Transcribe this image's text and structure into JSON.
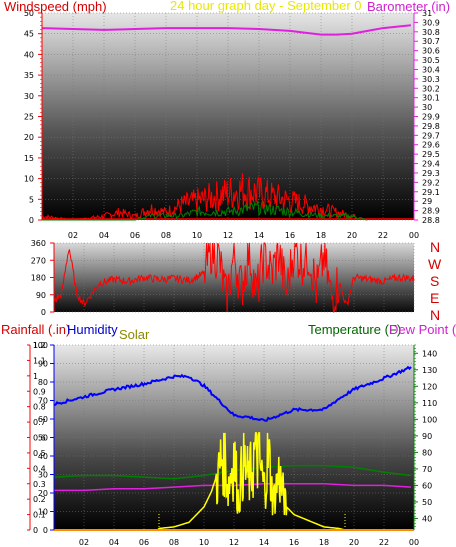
{
  "titles": {
    "windspeed": "Windspeed (mph)",
    "date": "24 hour graph day - September 0",
    "barometer": "Barometer (in)",
    "rainfall": "Rainfall (.in)",
    "humidity": "Humidity",
    "solar": "Solar",
    "temperature": "Temperature (F)",
    "dewpoint": "Dew Point ("
  },
  "direction_labels": [
    "N",
    "W",
    "S",
    "E",
    "N"
  ],
  "colors": {
    "wind": "#ff0000",
    "gust_fill": "#ff0000",
    "avg_wind": "#008000",
    "barometer": "#e020e0",
    "humidity": "#0000ff",
    "solar": "#ffff00",
    "temperature": "#008000",
    "dewpoint": "#e020e0",
    "rain": "#ff8c00",
    "axis_left": "#ff0000",
    "axis_right_top": "#e020e0",
    "axis_right_bottom": "#008000",
    "axis_humidity": "#0000ff"
  },
  "chart_data": [
    {
      "type": "line",
      "name": "wind_barometer",
      "x_ticks": [
        "02",
        "04",
        "06",
        "08",
        "10",
        "12",
        "14",
        "16",
        "18",
        "20",
        "22",
        "00"
      ],
      "left_axis": {
        "label": "Windspeed (mph)",
        "ticks": [
          0,
          5,
          10,
          15,
          20,
          25,
          30,
          35,
          40,
          45,
          50
        ],
        "ylim": [
          0,
          50
        ]
      },
      "right_axis": {
        "label": "Barometer (in)",
        "ticks": [
          28.8,
          28.9,
          29,
          29.1,
          29.2,
          29.3,
          29.4,
          29.5,
          29.6,
          29.7,
          29.8,
          29.9,
          30,
          30.1,
          30.2,
          30.3,
          30.4,
          30.5,
          30.6,
          30.7,
          30.8,
          30.9,
          31
        ],
        "ylim": [
          28.8,
          31.0
        ]
      },
      "series": [
        {
          "values": [
            [
              0,
              30.84
            ],
            [
              2,
              30.83
            ],
            [
              4,
              30.82
            ],
            [
              6,
              30.83
            ],
            [
              8,
              30.84
            ],
            [
              10,
              30.84
            ],
            [
              12,
              30.84
            ],
            [
              14,
              30.83
            ],
            [
              16,
              30.81
            ],
            [
              17,
              30.79
            ],
            [
              18,
              30.77
            ],
            [
              19,
              30.77
            ],
            [
              20,
              30.78
            ],
            [
              21,
              30.81
            ],
            [
              22,
              30.84
            ],
            [
              23.8,
              30.87
            ]
          ]
        },
        {
          "values": [
            [
              0,
              1
            ],
            [
              2,
              0
            ],
            [
              4,
              1
            ],
            [
              5,
              2
            ],
            [
              6,
              1
            ],
            [
              7,
              3
            ],
            [
              8,
              2
            ],
            [
              9,
              4
            ],
            [
              10,
              5
            ],
            [
              11,
              6
            ],
            [
              12,
              7
            ],
            [
              13,
              8
            ],
            [
              14,
              7
            ],
            [
              15,
              6
            ],
            [
              16,
              5
            ],
            [
              17,
              4
            ],
            [
              18,
              3
            ],
            [
              19,
              2
            ],
            [
              20,
              1
            ],
            [
              21,
              0
            ],
            [
              24,
              0
            ]
          ]
        },
        {
          "values": [
            [
              0,
              0
            ],
            [
              6,
              0
            ],
            [
              7,
              1
            ],
            [
              9,
              1
            ],
            [
              10,
              2
            ],
            [
              12,
              2
            ],
            [
              14,
              3
            ],
            [
              16,
              2
            ],
            [
              18,
              1
            ],
            [
              20,
              1
            ],
            [
              21,
              0
            ],
            [
              24,
              0
            ]
          ]
        }
      ],
      "peak_gust": 13
    },
    {
      "type": "scatter",
      "name": "wind_direction",
      "yticks": [
        0,
        90,
        180,
        270,
        360
      ],
      "ylim": [
        0,
        360
      ],
      "values": [
        [
          0,
          60
        ],
        [
          0.5,
          90
        ],
        [
          1,
          340
        ],
        [
          1.5,
          100
        ],
        [
          2,
          40
        ],
        [
          3,
          150
        ],
        [
          4,
          170
        ],
        [
          5,
          160
        ],
        [
          6,
          180
        ],
        [
          7,
          170
        ],
        [
          8,
          175
        ],
        [
          9,
          165
        ],
        [
          10,
          200
        ],
        [
          10.5,
          330
        ],
        [
          11,
          280
        ],
        [
          11.5,
          60
        ],
        [
          12,
          300
        ],
        [
          12.5,
          120
        ],
        [
          13,
          320
        ],
        [
          13.5,
          90
        ],
        [
          14,
          300
        ],
        [
          14.5,
          200
        ],
        [
          15,
          310
        ],
        [
          15.5,
          100
        ],
        [
          16,
          330
        ],
        [
          16.5,
          260
        ],
        [
          17,
          300
        ],
        [
          17.5,
          120
        ],
        [
          18,
          290
        ],
        [
          18.5,
          70
        ],
        [
          19,
          160
        ],
        [
          19.5,
          30
        ],
        [
          20,
          180
        ],
        [
          21,
          170
        ],
        [
          22,
          160
        ],
        [
          23,
          180
        ],
        [
          24,
          175
        ]
      ]
    },
    {
      "type": "line",
      "name": "rain_humidity_solar_temp",
      "x_ticks": [
        "02",
        "04",
        "06",
        "08",
        "10",
        "12",
        "14",
        "16",
        "18",
        "20",
        "22",
        "00"
      ],
      "rain_axis": {
        "label": "Rainfall (.in)",
        "ticks": [
          0,
          0.1,
          0.2,
          0.3,
          0.4,
          0.5,
          0.6,
          0.7,
          0.8,
          0.9,
          1,
          1.1,
          1.2
        ],
        "ylim": [
          0,
          1.2
        ]
      },
      "humidity_axis": {
        "label": "Humidity",
        "ticks": [
          0,
          10,
          20,
          30,
          40,
          50,
          60,
          70,
          80,
          90,
          100
        ],
        "ylim": [
          0,
          100
        ]
      },
      "temp_axis": {
        "label": "Temperature (F)",
        "ticks": [
          40,
          50,
          60,
          70,
          80,
          90,
          100,
          110,
          120,
          130,
          140
        ],
        "ylim": [
          33,
          145
        ]
      },
      "series": [
        {
          "values": [
            [
              0,
              68
            ],
            [
              2,
              72
            ],
            [
              4,
              76
            ],
            [
              6,
              79
            ],
            [
              8,
              83
            ],
            [
              9,
              83
            ],
            [
              10,
              78
            ],
            [
              11,
              70
            ],
            [
              12,
              62
            ],
            [
              13,
              61
            ],
            [
              14,
              59
            ],
            [
              15,
              62
            ],
            [
              16,
              65
            ],
            [
              18,
              65
            ],
            [
              19,
              71
            ],
            [
              20,
              76
            ],
            [
              22,
              82
            ],
            [
              23.8,
              88
            ]
          ]
        },
        {
          "values": [
            [
              0,
              65
            ],
            [
              2,
              66
            ],
            [
              4,
              66
            ],
            [
              6,
              65
            ],
            [
              8,
              64
            ],
            [
              10,
              66
            ],
            [
              12,
              69
            ],
            [
              14,
              71
            ],
            [
              16,
              72
            ],
            [
              18,
              72
            ],
            [
              20,
              71
            ],
            [
              22,
              68
            ],
            [
              23.8,
              66
            ]
          ]
        },
        {
          "values": [
            [
              0,
              57
            ],
            [
              2,
              57
            ],
            [
              4,
              58
            ],
            [
              6,
              58
            ],
            [
              8,
              59
            ],
            [
              10,
              60
            ],
            [
              12,
              60
            ],
            [
              14,
              61
            ],
            [
              16,
              61
            ],
            [
              18,
              61
            ],
            [
              20,
              60
            ],
            [
              22,
              60
            ],
            [
              23.8,
              59
            ]
          ]
        },
        {
          "values": [
            [
              0,
              0
            ],
            [
              6.9,
              0
            ],
            [
              7,
              0.01
            ],
            [
              8,
              0.02
            ],
            [
              9,
              0.05
            ],
            [
              10,
              0.15
            ],
            [
              10.5,
              0.25
            ],
            [
              11,
              0.4
            ],
            [
              11.3,
              0.62
            ],
            [
              11.6,
              0.3
            ],
            [
              12,
              0.55
            ],
            [
              12.3,
              0.2
            ],
            [
              12.6,
              0.5
            ],
            [
              13,
              0.35
            ],
            [
              13.5,
              0.6
            ],
            [
              14,
              0.3
            ],
            [
              14.3,
              0.55
            ],
            [
              14.6,
              0.2
            ],
            [
              15,
              0.4
            ],
            [
              15.5,
              0.15
            ],
            [
              16,
              0.1
            ],
            [
              17,
              0.06
            ],
            [
              18,
              0.02
            ],
            [
              19,
              0.01
            ],
            [
              19.4,
              0
            ],
            [
              24,
              0
            ]
          ]
        },
        {
          "values": [
            [
              0,
              0
            ],
            [
              24,
              0
            ]
          ]
        }
      ]
    }
  ]
}
